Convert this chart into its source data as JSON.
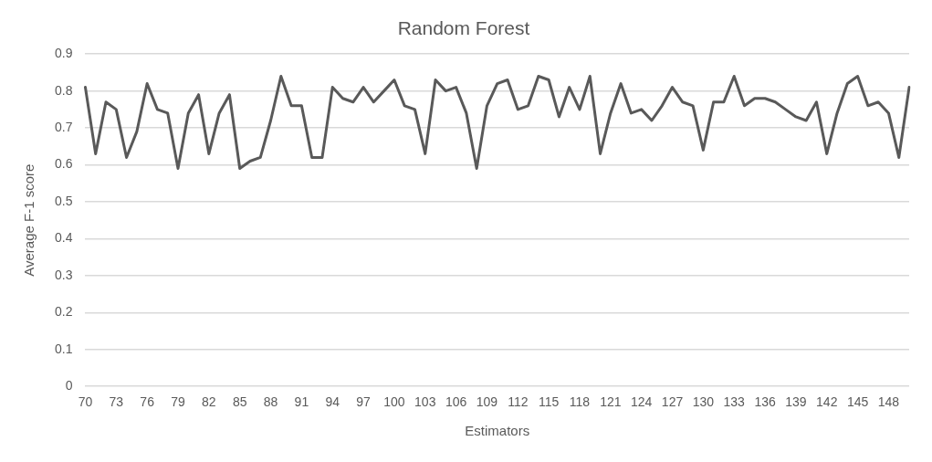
{
  "chart_data": {
    "type": "line",
    "title": "Random Forest",
    "xlabel": "Estimators",
    "ylabel": "Average F-1 score",
    "categories": [
      "70",
      null,
      null,
      "73",
      null,
      null,
      "76",
      null,
      null,
      "79",
      null,
      null,
      "82",
      null,
      null,
      "85",
      null,
      null,
      "88",
      null,
      null,
      "91",
      null,
      null,
      "94",
      null,
      null,
      "97",
      null,
      null,
      "100",
      null,
      null,
      "103",
      null,
      null,
      "106",
      null,
      null,
      "109",
      null,
      null,
      "112",
      null,
      null,
      "115",
      null,
      null,
      "118",
      null,
      null,
      "121",
      null,
      null,
      "124",
      null,
      null,
      "127",
      null,
      null,
      "130",
      null,
      null,
      "133",
      null,
      null,
      "136",
      null,
      null,
      "139",
      null,
      null,
      "142",
      null,
      null,
      "145",
      null,
      null,
      "148",
      null,
      null
    ],
    "series": [
      {
        "color": "#595959",
        "values": [
          0.81,
          0.63,
          0.77,
          0.75,
          0.62,
          0.69,
          0.82,
          0.75,
          0.74,
          0.59,
          0.74,
          0.79,
          0.63,
          0.74,
          0.79,
          0.59,
          0.61,
          0.62,
          0.72,
          0.84,
          0.76,
          0.76,
          0.62,
          0.62,
          0.81,
          0.78,
          0.77,
          0.81,
          0.77,
          0.8,
          0.83,
          0.76,
          0.75,
          0.63,
          0.83,
          0.8,
          0.81,
          0.74,
          0.59,
          0.76,
          0.82,
          0.83,
          0.75,
          0.76,
          0.84,
          0.83,
          0.73,
          0.81,
          0.75,
          0.84,
          0.63,
          0.74,
          0.82,
          0.74,
          0.75,
          0.72,
          0.76,
          0.81,
          0.77,
          0.76,
          0.64,
          0.77,
          0.77,
          0.84,
          0.76,
          0.78,
          0.78,
          0.77,
          0.75,
          0.73,
          0.72,
          0.77,
          0.63,
          0.74,
          0.82,
          0.84,
          0.76,
          0.77,
          0.74,
          0.62,
          0.81
        ]
      }
    ],
    "ylim": [
      0,
      0.9
    ],
    "yticks": [
      0,
      0.1,
      0.2,
      0.3,
      0.4,
      0.5,
      0.6,
      0.7,
      0.8,
      0.9
    ],
    "grid": "y",
    "marker": "none",
    "line_style": "solid"
  }
}
